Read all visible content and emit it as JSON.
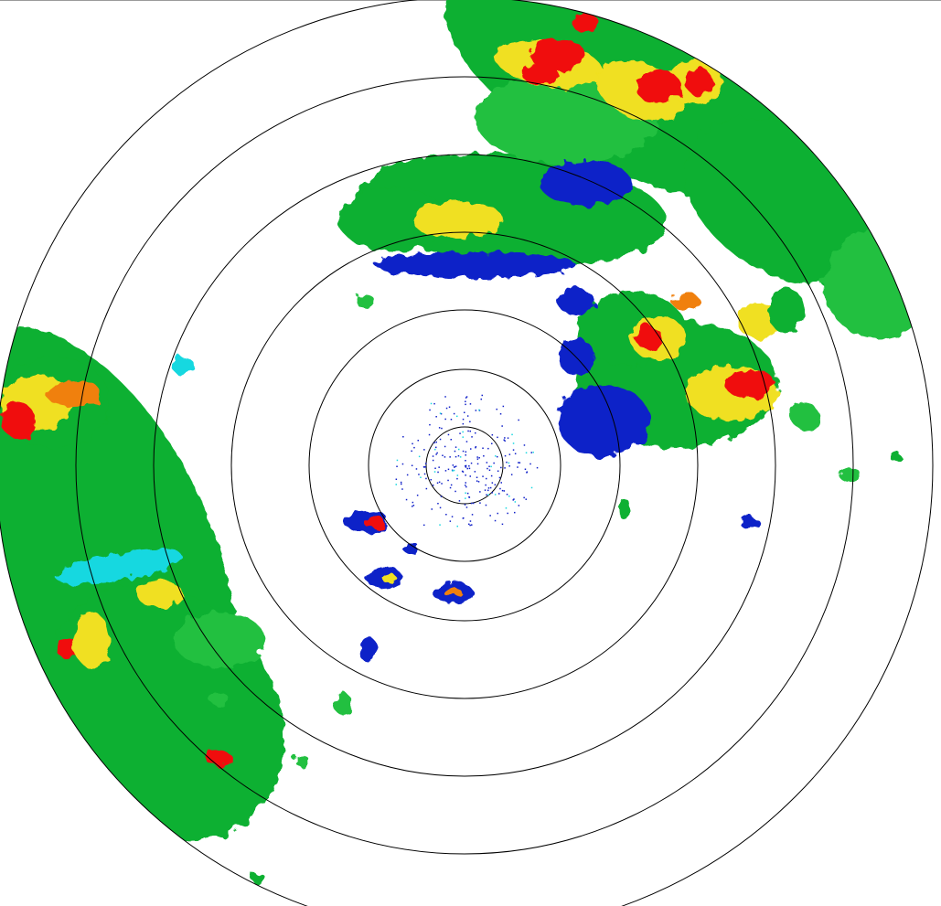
{
  "radar": {
    "range_rings": 7,
    "palette": {
      "weak": "#1020c8",
      "light": "#18d8e0",
      "moderate_low": "#20c040",
      "moderate": "#10b030",
      "strong": "#f0e020",
      "heavy": "#f08010",
      "intense": "#f01010"
    },
    "ring_color": "#000000",
    "background": "#ffffff"
  }
}
